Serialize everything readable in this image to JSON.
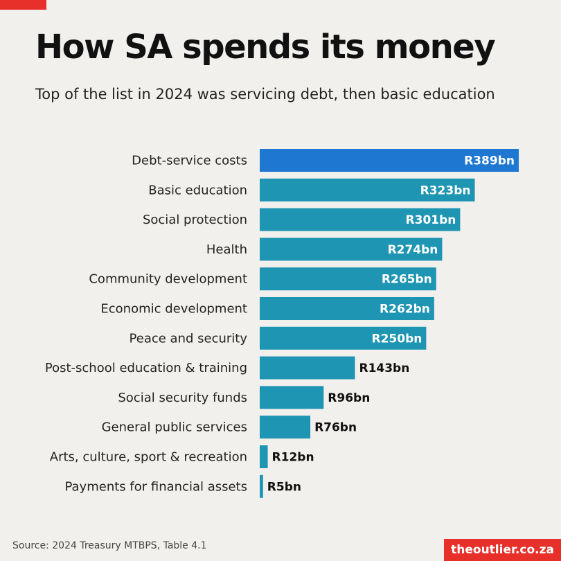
{
  "header": {
    "title": "How SA spends its money",
    "subtitle": "Top of the list in 2024 was servicing debt, then basic education"
  },
  "footer": {
    "source": "Source: 2024 Treasury MTBPS, Table 4.1",
    "brand": "theoutlier.co.za"
  },
  "colors": {
    "highlight": "#1e78d2",
    "bar": "#1d95b3",
    "accent": "#e8302a",
    "label_inside": "#ffffff",
    "label_outside": "#111111"
  },
  "chart_data": {
    "type": "bar",
    "orientation": "horizontal",
    "categories": [
      "Debt-service costs",
      "Basic education",
      "Social protection",
      "Health",
      "Community development",
      "Economic development",
      "Peace and security",
      "Post-school education & training",
      "Social security funds",
      "General public services",
      "Arts, culture, sport & recreation",
      "Payments for financial assets"
    ],
    "values": [
      389,
      323,
      301,
      274,
      265,
      262,
      250,
      143,
      96,
      76,
      12,
      5
    ],
    "data_labels": [
      "R389bn",
      "R323bn",
      "R301bn",
      "R274bn",
      "R265bn",
      "R262bn",
      "R250bn",
      "R143bn",
      "R96bn",
      "R76bn",
      "R12bn",
      "R5bn"
    ],
    "highlighted_category": "Debt-service costs",
    "title": "How SA spends its money",
    "xlabel": "",
    "ylabel": "",
    "xlim": [
      0,
      389
    ],
    "grid": false,
    "legend": "none"
  }
}
